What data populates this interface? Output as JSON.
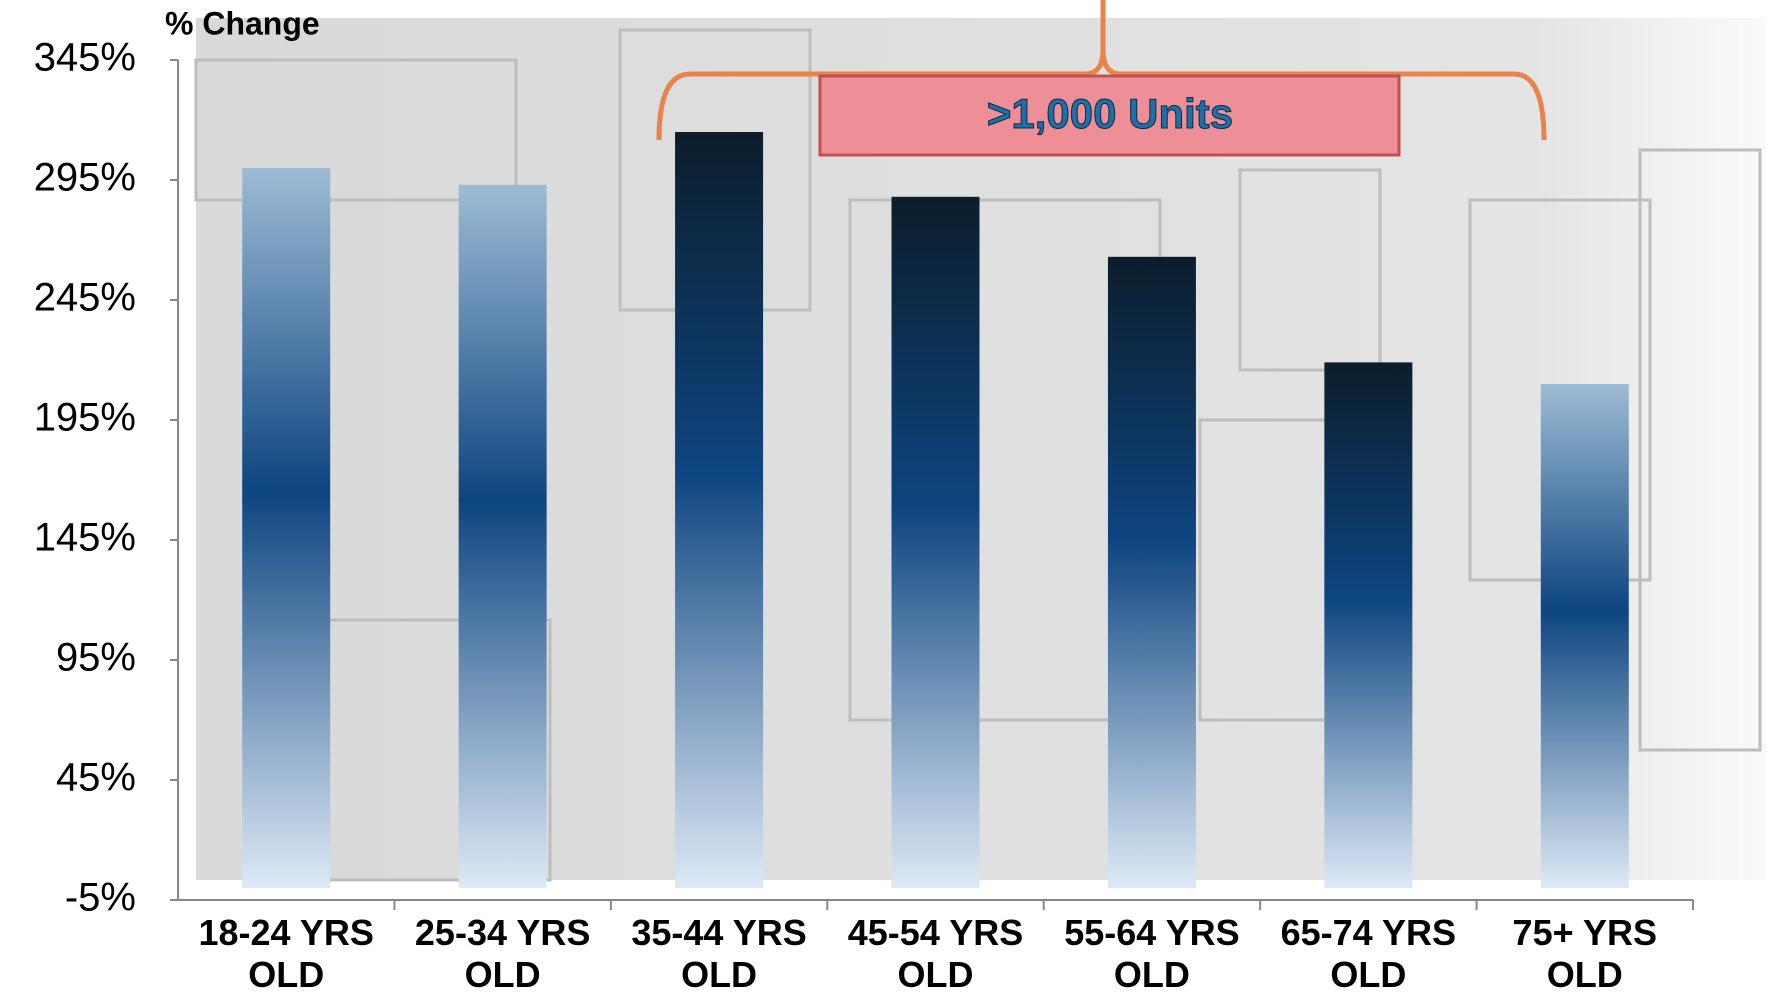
{
  "chart_data": {
    "type": "bar",
    "y_axis_title": "% Change",
    "annotation": ">1,000 Units",
    "categories": [
      "18-24 YRS OLD",
      "25-34 YRS OLD",
      "35-44 YRS OLD",
      "45-54 YRS OLD",
      "55-64 YRS OLD",
      "65-74 YRS OLD",
      "75+ YRS OLD"
    ],
    "values": [
      300,
      293,
      315,
      288,
      263,
      219,
      210
    ],
    "colors": [
      "#9dbbd5",
      "#9dbbd5",
      "#0c1d2c",
      "#0c1d2c",
      "#0c1d2c",
      "#0c1d2c",
      "#9dbbd5"
    ],
    "ylim": [
      -5,
      345
    ],
    "yticks": [
      {
        "value": -5,
        "label": "-5%"
      },
      {
        "value": 45,
        "label": "45%"
      },
      {
        "value": 95,
        "label": "95%"
      },
      {
        "value": 145,
        "label": "145%"
      },
      {
        "value": 195,
        "label": "195%"
      },
      {
        "value": 245,
        "label": "245%"
      },
      {
        "value": 295,
        "label": "295%"
      },
      {
        "value": 345,
        "label": "345%"
      }
    ]
  }
}
